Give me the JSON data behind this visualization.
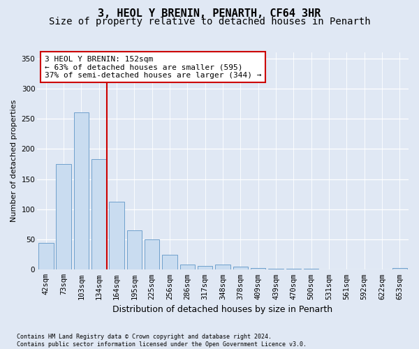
{
  "title": "3, HEOL Y BRENIN, PENARTH, CF64 3HR",
  "subtitle": "Size of property relative to detached houses in Penarth",
  "xlabel": "Distribution of detached houses by size in Penarth",
  "ylabel": "Number of detached properties",
  "categories": [
    "42sqm",
    "73sqm",
    "103sqm",
    "134sqm",
    "164sqm",
    "195sqm",
    "225sqm",
    "256sqm",
    "286sqm",
    "317sqm",
    "348sqm",
    "378sqm",
    "409sqm",
    "439sqm",
    "470sqm",
    "500sqm",
    "531sqm",
    "561sqm",
    "592sqm",
    "622sqm",
    "653sqm"
  ],
  "values": [
    44,
    175,
    260,
    183,
    113,
    65,
    50,
    25,
    8,
    6,
    8,
    5,
    3,
    2,
    1,
    1,
    0,
    0,
    0,
    0,
    3
  ],
  "bar_color": "#c9dcf0",
  "bar_edge_color": "#6fa0cc",
  "vline_x_index": 3,
  "vline_color": "#cc0000",
  "annotation_line1": "3 HEOL Y BRENIN: 152sqm",
  "annotation_line2": "← 63% of detached houses are smaller (595)",
  "annotation_line3": "37% of semi-detached houses are larger (344) →",
  "annotation_box_facecolor": "#ffffff",
  "annotation_box_edgecolor": "#cc0000",
  "ylim": [
    0,
    360
  ],
  "yticks": [
    0,
    50,
    100,
    150,
    200,
    250,
    300,
    350
  ],
  "bg_color": "#e0e8f4",
  "footer_text": "Contains HM Land Registry data © Crown copyright and database right 2024.\nContains public sector information licensed under the Open Government Licence v3.0.",
  "title_fontsize": 11,
  "subtitle_fontsize": 10,
  "xlabel_fontsize": 9,
  "ylabel_fontsize": 8,
  "tick_fontsize": 7.5,
  "annotation_fontsize": 8,
  "footer_fontsize": 6
}
